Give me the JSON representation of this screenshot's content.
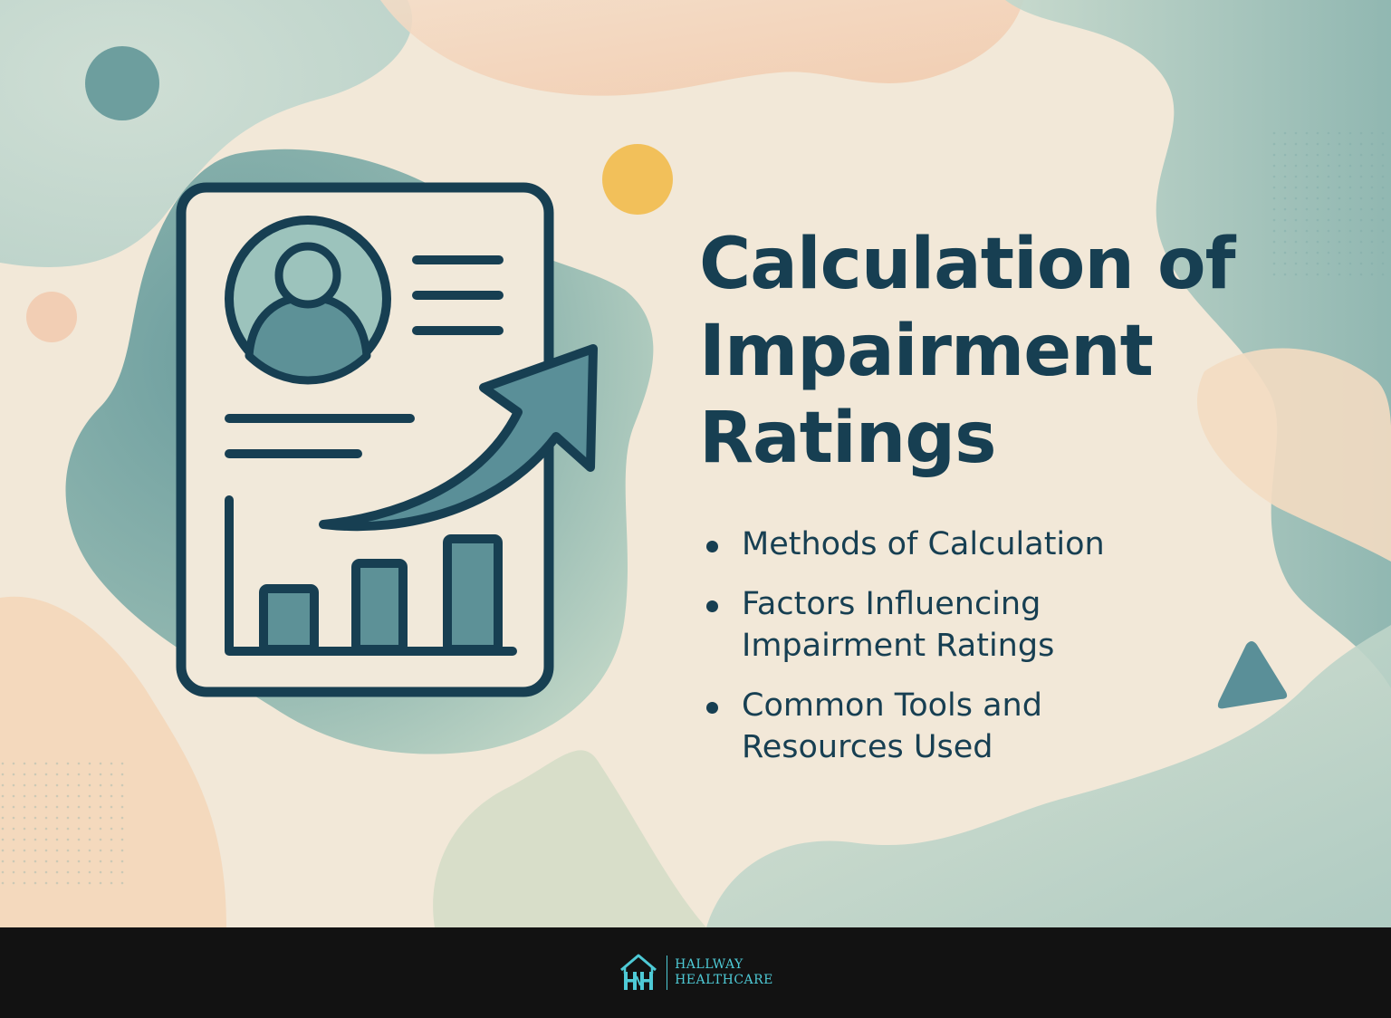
{
  "title_lines": [
    "Calculation of",
    "Impairment",
    "Ratings"
  ],
  "bullets": [
    [
      "Methods of Calculation"
    ],
    [
      "Factors Influencing",
      "Impairment Ratings"
    ],
    [
      "Common Tools and",
      "Resources Used"
    ]
  ],
  "footer": {
    "brand_line1": "HALLWAY",
    "brand_line2": "HEALTHCARE",
    "logo_icon": "house-hh-monogram-icon"
  },
  "illustration": {
    "main_icon": "report-growth-chart-icon",
    "profile_icon": "user-avatar-icon",
    "arrow_icon": "upward-trend-arrow-icon"
  },
  "colors": {
    "background": "#f2e8d8",
    "text_navy": "#173f52",
    "teal": "#5d9197",
    "teal_light": "#9ec4be",
    "yellow_dot": "#f2c05a",
    "peach": "#f5d2b8",
    "footer_bg": "#121212",
    "brand_cyan": "#4ecad6"
  }
}
